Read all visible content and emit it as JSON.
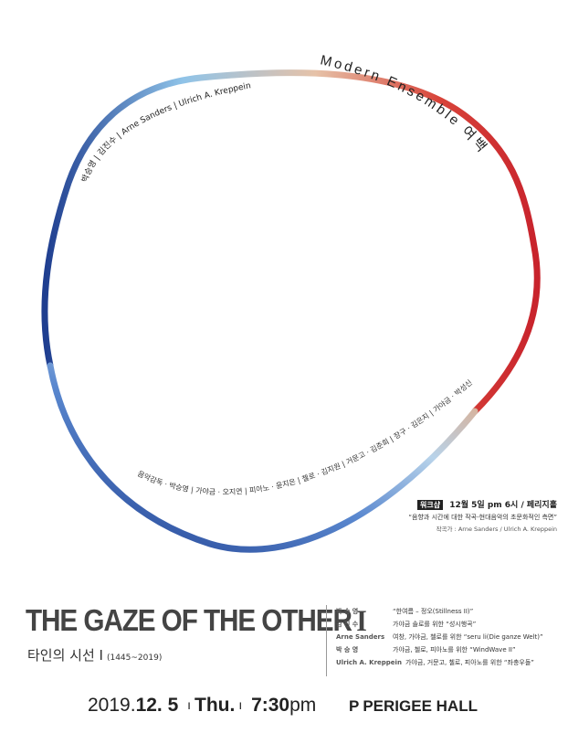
{
  "ring": {
    "ensemble_label": "Modern Ensemble 여백",
    "composers_arc": "박승영 | 김진수 | Arne Sanders | Ulrich A. Kreppein",
    "performers_arc": "음악감독 · 박승영 | 가야금 · 오지연 | 피아노 · 윤지은 | 첼로 · 김지원 | 거문고 · 김준희 | 장구 · 김은지 | 가야금 · 박성신"
  },
  "workshop": {
    "tag": "워크샵",
    "when_where": "12월 5일 pm 6시 / 페리지홀",
    "description": "“음향과 시간에 대한 작곡-현대음악의 초문화적인 측면”",
    "credit": "작곡가 : Arne Sanders / Ulrich A. Kreppein"
  },
  "title": {
    "main": "THE GAZE OF THE OTHER",
    "numeral": "I",
    "korean": "타인의 시선 I",
    "years": "(1445~2019)"
  },
  "program": [
    {
      "composer": "박 승 영",
      "work": "“한여름 – 정오(Stillness II)”"
    },
    {
      "composer": "김 진 수",
      "work": "가야금 솔로를 위한 “성시행곡”"
    },
    {
      "composer": "Arne Sanders",
      "work": "여창, 가야금, 첼로를 위한 “seru li(Die ganze Welt)”"
    },
    {
      "composer": "박 승 영",
      "work": "가야금, 첼로, 피아노를 위한 “WindWave II”"
    },
    {
      "composer": "Ulrich A. Kreppein",
      "work": "가야금, 거문고, 첼로, 피아노를 위한 “좌충우돌”"
    }
  ],
  "footer": {
    "year": "2019.",
    "date": "12. 5",
    "day": "Thu.",
    "time_num": "7:30",
    "time_suffix": "pm",
    "venue_icon": "P",
    "venue": "PERIGEE HALL"
  },
  "colors": {
    "ring_red": "#c8232c",
    "ring_orange": "#e8a070",
    "ring_blue": "#1e3d8f",
    "ring_light_blue": "#8fc3e8"
  }
}
